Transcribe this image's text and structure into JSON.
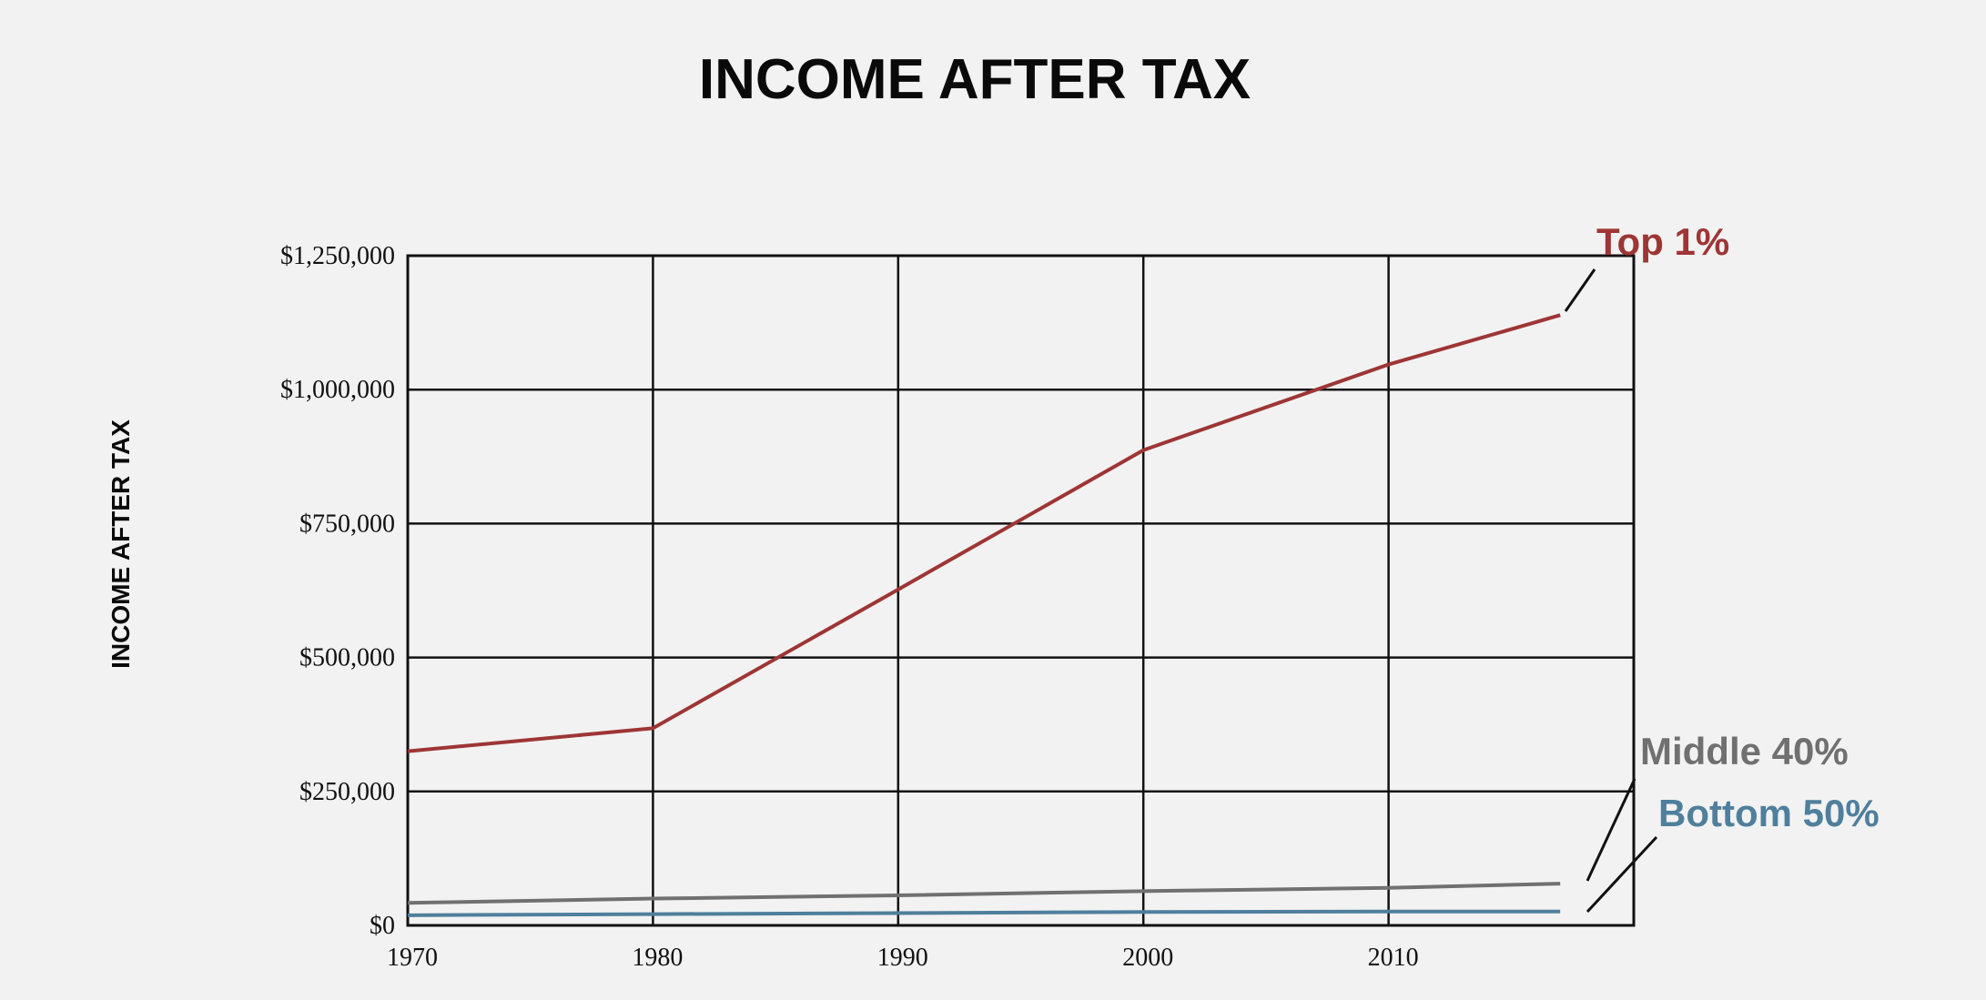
{
  "chart_data": {
    "type": "line",
    "title": "INCOME AFTER TAX",
    "y_label": "INCOME AFTER TAX",
    "x": [
      1970,
      1980,
      1990,
      2000,
      2010,
      2017
    ],
    "xlim": [
      1970,
      2020
    ],
    "xticks": [
      1970,
      1980,
      1990,
      2000,
      2010
    ],
    "ylim": [
      0,
      1250000
    ],
    "yticks": [
      {
        "value": 0,
        "label": "$0"
      },
      {
        "value": 250000,
        "label": "$250,000"
      },
      {
        "value": 500000,
        "label": "$500,000"
      },
      {
        "value": 750000,
        "label": "$750,000"
      },
      {
        "value": 1000000,
        "label": "$1,000,000"
      },
      {
        "value": 1250000,
        "label": "$1,250,000"
      }
    ],
    "grid": true,
    "series": [
      {
        "name": "Top 1%",
        "color": "#9e3535",
        "values": [
          325000,
          368000,
          627000,
          887000,
          1047000,
          1139000
        ]
      },
      {
        "name": "Middle 40%",
        "color": "#707070",
        "values": [
          42000,
          50000,
          56000,
          64000,
          70000,
          78000
        ]
      },
      {
        "name": "Bottom 50%",
        "color": "#4f7f9c",
        "values": [
          19000,
          21000,
          23000,
          25000,
          26000,
          26000
        ]
      }
    ]
  }
}
